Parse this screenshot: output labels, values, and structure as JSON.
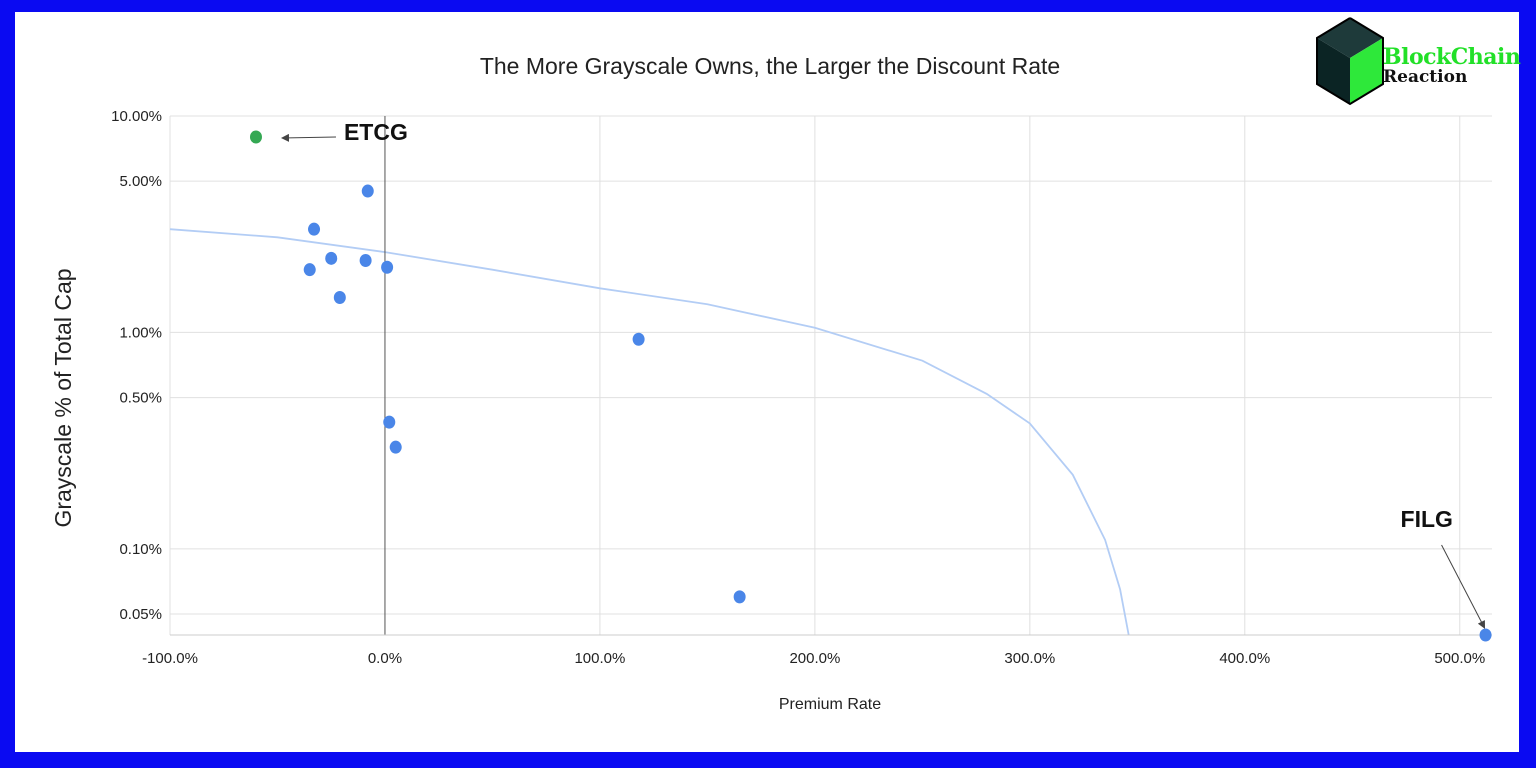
{
  "logo": {
    "line1": "BlockChain",
    "line2": "Reaction"
  },
  "chart_data": {
    "type": "scatter",
    "title": "The More Grayscale Owns, the Larger the Discount Rate",
    "xlabel": "Premium Rate",
    "ylabel": "Grayscale % of Total Cap",
    "y_scale": "log",
    "xlim": [
      -100,
      515
    ],
    "ylim": [
      0.04,
      10
    ],
    "x_ticks": [
      -100,
      0,
      100,
      200,
      300,
      400,
      500
    ],
    "x_tick_labels": [
      "-100.0%",
      "0.0%",
      "100.0%",
      "200.0%",
      "300.0%",
      "400.0%",
      "500.0%"
    ],
    "y_ticks": [
      0.05,
      0.1,
      0.5,
      1,
      5,
      10
    ],
    "y_tick_labels": [
      "0.05%",
      "0.10%",
      "0.50%",
      "1.00%",
      "5.00%",
      "10.00%"
    ],
    "grid": true,
    "point_color": "#4a86e8",
    "highlight_color": "#34a853",
    "trendline_color": "#b3cdf5",
    "points": [
      {
        "x": -60,
        "y": 8.0,
        "highlight": true
      },
      {
        "x": -8,
        "y": 4.5
      },
      {
        "x": -33,
        "y": 3.0
      },
      {
        "x": -25,
        "y": 2.2
      },
      {
        "x": -9,
        "y": 2.15
      },
      {
        "x": 1,
        "y": 2.0
      },
      {
        "x": -35,
        "y": 1.95
      },
      {
        "x": -21,
        "y": 1.45
      },
      {
        "x": 118,
        "y": 0.93
      },
      {
        "x": 2,
        "y": 0.385
      },
      {
        "x": 5,
        "y": 0.295
      },
      {
        "x": 165,
        "y": 0.06
      },
      {
        "x": 512,
        "y": 0.04
      }
    ],
    "trendline": [
      {
        "x": -100,
        "y": 3.0
      },
      {
        "x": -50,
        "y": 2.75
      },
      {
        "x": 0,
        "y": 2.35
      },
      {
        "x": 50,
        "y": 1.95
      },
      {
        "x": 100,
        "y": 1.6
      },
      {
        "x": 150,
        "y": 1.35
      },
      {
        "x": 200,
        "y": 1.05
      },
      {
        "x": 250,
        "y": 0.74
      },
      {
        "x": 280,
        "y": 0.52
      },
      {
        "x": 300,
        "y": 0.38
      },
      {
        "x": 320,
        "y": 0.22
      },
      {
        "x": 335,
        "y": 0.11
      },
      {
        "x": 342,
        "y": 0.065
      },
      {
        "x": 346,
        "y": 0.04
      }
    ],
    "annotations": [
      {
        "text": "ETCG",
        "target_x": -60,
        "target_y": 8.0
      },
      {
        "text": "FILG",
        "target_x": 512,
        "target_y": 0.04
      }
    ]
  }
}
